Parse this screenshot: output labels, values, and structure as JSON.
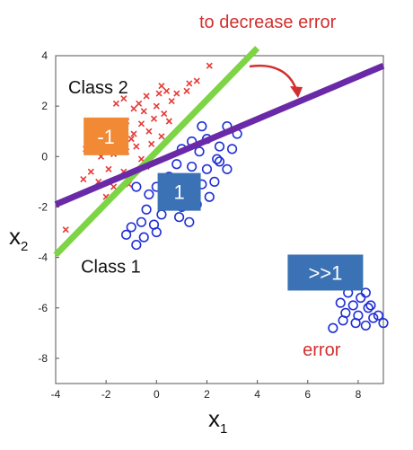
{
  "chart_data": {
    "type": "scatter",
    "xlabel": "x",
    "xlabel_sub": "1",
    "ylabel": "x",
    "ylabel_sub": "2",
    "xlim": [
      -4,
      9
    ],
    "ylim": [
      -9,
      4
    ],
    "xticks": [
      -4,
      -2,
      0,
      2,
      4,
      6,
      8
    ],
    "yticks": [
      4,
      2,
      0,
      -2,
      -4,
      -6,
      -8
    ],
    "series": [
      {
        "marker": "x",
        "color": "#e53935",
        "points": [
          [
            -1.6,
            2.1
          ],
          [
            -1.3,
            2.3
          ],
          [
            -0.7,
            2.1
          ],
          [
            -0.4,
            2.4
          ],
          [
            0.1,
            2.5
          ],
          [
            0.2,
            2.8
          ],
          [
            0.4,
            2.6
          ],
          [
            0.8,
            2.5
          ],
          [
            1.2,
            2.6
          ],
          [
            1.3,
            2.9
          ],
          [
            1.6,
            3.0
          ],
          [
            2.1,
            3.6
          ],
          [
            -0.9,
            1.9
          ],
          [
            -0.5,
            1.8
          ],
          [
            0.0,
            2.0
          ],
          [
            0.3,
            1.7
          ],
          [
            -1.8,
            1.3
          ],
          [
            -1.2,
            1.4
          ],
          [
            -0.6,
            1.3
          ],
          [
            -0.1,
            1.5
          ],
          [
            0.5,
            1.4
          ],
          [
            -1.4,
            1.0
          ],
          [
            -0.9,
            0.9
          ],
          [
            -0.3,
            1.0
          ],
          [
            0.2,
            0.8
          ],
          [
            -2.4,
            0.6
          ],
          [
            -1.9,
            0.6
          ],
          [
            -1.5,
            0.5
          ],
          [
            -0.8,
            0.4
          ],
          [
            -0.2,
            0.5
          ],
          [
            -2.8,
            0.3
          ],
          [
            -2.2,
            0.0
          ],
          [
            -1.7,
            0.1
          ],
          [
            -1.2,
            0.2
          ],
          [
            -0.6,
            -0.1
          ],
          [
            -2.6,
            -0.6
          ],
          [
            -1.9,
            -0.5
          ],
          [
            -1.3,
            -0.6
          ],
          [
            -2.9,
            -0.9
          ],
          [
            -2.3,
            -1.0
          ],
          [
            -1.7,
            -1.2
          ],
          [
            -1.1,
            -1.1
          ],
          [
            -2.0,
            -1.6
          ],
          [
            -3.6,
            -2.9
          ],
          [
            -0.4,
            -0.4
          ],
          [
            -1.0,
            0.7
          ],
          [
            0.6,
            2.2
          ]
        ]
      },
      {
        "marker": "o",
        "color": "#1f2fd6",
        "points": [
          [
            1.8,
            1.2
          ],
          [
            2.8,
            1.2
          ],
          [
            3.2,
            0.9
          ],
          [
            1.4,
            0.6
          ],
          [
            2.0,
            0.7
          ],
          [
            2.5,
            0.4
          ],
          [
            1.0,
            0.3
          ],
          [
            1.7,
            0.2
          ],
          [
            2.4,
            -0.1
          ],
          [
            3.0,
            0.3
          ],
          [
            0.8,
            -0.3
          ],
          [
            1.4,
            -0.4
          ],
          [
            2.0,
            -0.5
          ],
          [
            2.8,
            -0.5
          ],
          [
            0.5,
            -0.8
          ],
          [
            1.1,
            -1.0
          ],
          [
            1.8,
            -1.1
          ],
          [
            2.3,
            -1.0
          ],
          [
            0.0,
            -1.2
          ],
          [
            0.5,
            -1.4
          ],
          [
            1.2,
            -1.5
          ],
          [
            2.1,
            -1.6
          ],
          [
            -0.8,
            -1.2
          ],
          [
            -0.3,
            -1.5
          ],
          [
            0.3,
            -1.8
          ],
          [
            1.0,
            -2.0
          ],
          [
            1.6,
            -1.9
          ],
          [
            -0.4,
            -2.1
          ],
          [
            0.2,
            -2.3
          ],
          [
            0.9,
            -2.4
          ],
          [
            -0.6,
            -2.6
          ],
          [
            -0.1,
            -2.7
          ],
          [
            -1.0,
            -2.8
          ],
          [
            -0.5,
            -3.2
          ],
          [
            0.0,
            -3.0
          ],
          [
            -0.8,
            -3.5
          ],
          [
            -1.2,
            -3.1
          ],
          [
            1.3,
            -2.6
          ],
          [
            2.5,
            -0.2
          ],
          [
            7.6,
            -5.4
          ],
          [
            8.1,
            -5.6
          ],
          [
            8.3,
            -5.4
          ],
          [
            7.3,
            -5.8
          ],
          [
            7.8,
            -5.9
          ],
          [
            8.4,
            -6.0
          ],
          [
            7.5,
            -6.2
          ],
          [
            8.0,
            -6.3
          ],
          [
            8.6,
            -6.4
          ],
          [
            7.4,
            -6.5
          ],
          [
            7.9,
            -6.6
          ],
          [
            8.8,
            -6.3
          ],
          [
            9.0,
            -6.6
          ],
          [
            8.3,
            -6.7
          ],
          [
            7.0,
            -6.8
          ],
          [
            8.5,
            -5.9
          ]
        ]
      }
    ],
    "lines": [
      {
        "color": "#7dd444",
        "from": [
          -4,
          -3.9
        ],
        "to": [
          4,
          4.3
        ]
      },
      {
        "color": "#6a2aa8",
        "from": [
          -4,
          -1.9
        ],
        "to": [
          9,
          3.6
        ]
      }
    ],
    "annotations": {
      "class2": {
        "text": "Class 2",
        "at": [
          -3.5,
          2.5
        ]
      },
      "class1": {
        "text": "Class 1",
        "at": [
          -3.0,
          -4.6
        ]
      },
      "box_neg": {
        "text": "-1",
        "color": "#f28a35",
        "center": [
          -2.0,
          0.8
        ]
      },
      "box_one": {
        "text": "1",
        "color": "#3a72b5",
        "center": [
          0.9,
          -1.4
        ]
      },
      "box_big": {
        "text": ">>1",
        "color": "#3a72b5",
        "center": [
          6.7,
          -4.6
        ]
      },
      "error_label": {
        "text": "error",
        "color": "#d32f2f",
        "at": [
          5.8,
          -7.9
        ]
      }
    }
  },
  "header_note": {
    "text": "to decrease error",
    "color": "#d32f2f"
  }
}
